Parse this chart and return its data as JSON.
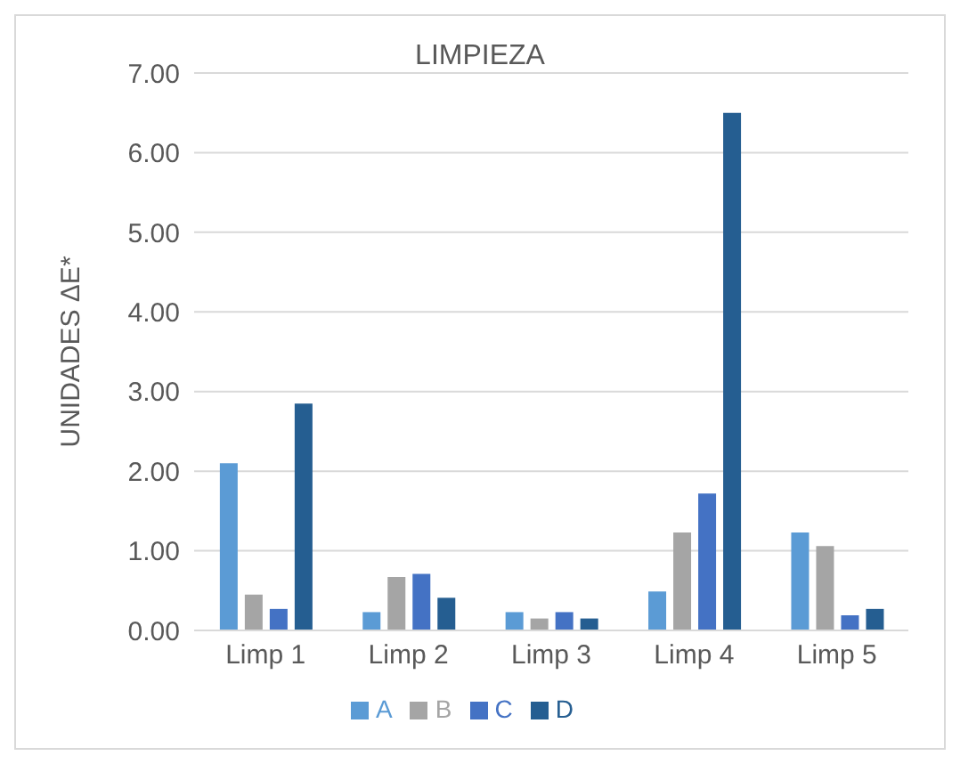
{
  "chart_data": {
    "type": "bar",
    "title": "LIMPIEZA",
    "ylabel": "UNIDADES ΔE*",
    "categories": [
      "Limp 1",
      "Limp 2",
      "Limp 3",
      "Limp 4",
      "Limp 5"
    ],
    "series": [
      {
        "name": "A",
        "color": "#5b9bd5",
        "values": [
          2.1,
          0.23,
          0.23,
          0.49,
          1.23
        ]
      },
      {
        "name": "B",
        "color": "#a5a5a5",
        "values": [
          0.45,
          0.67,
          0.15,
          1.23,
          1.06
        ]
      },
      {
        "name": "C",
        "color": "#4472c4",
        "values": [
          0.27,
          0.71,
          0.23,
          1.72,
          0.19
        ]
      },
      {
        "name": "D",
        "color": "#255e91",
        "values": [
          2.85,
          0.41,
          0.15,
          6.5,
          0.27
        ]
      }
    ],
    "ylim": [
      0,
      7
    ],
    "yticks": [
      {
        "value": 0,
        "label": "0.00"
      },
      {
        "value": 1,
        "label": "1.00"
      },
      {
        "value": 2,
        "label": "2.00"
      },
      {
        "value": 3,
        "label": "3.00"
      },
      {
        "value": 4,
        "label": "4.00"
      },
      {
        "value": 5,
        "label": "5.00"
      },
      {
        "value": 6,
        "label": "6.00"
      },
      {
        "value": 7,
        "label": "7.00"
      }
    ],
    "grid": "y",
    "legend": "bottom"
  }
}
